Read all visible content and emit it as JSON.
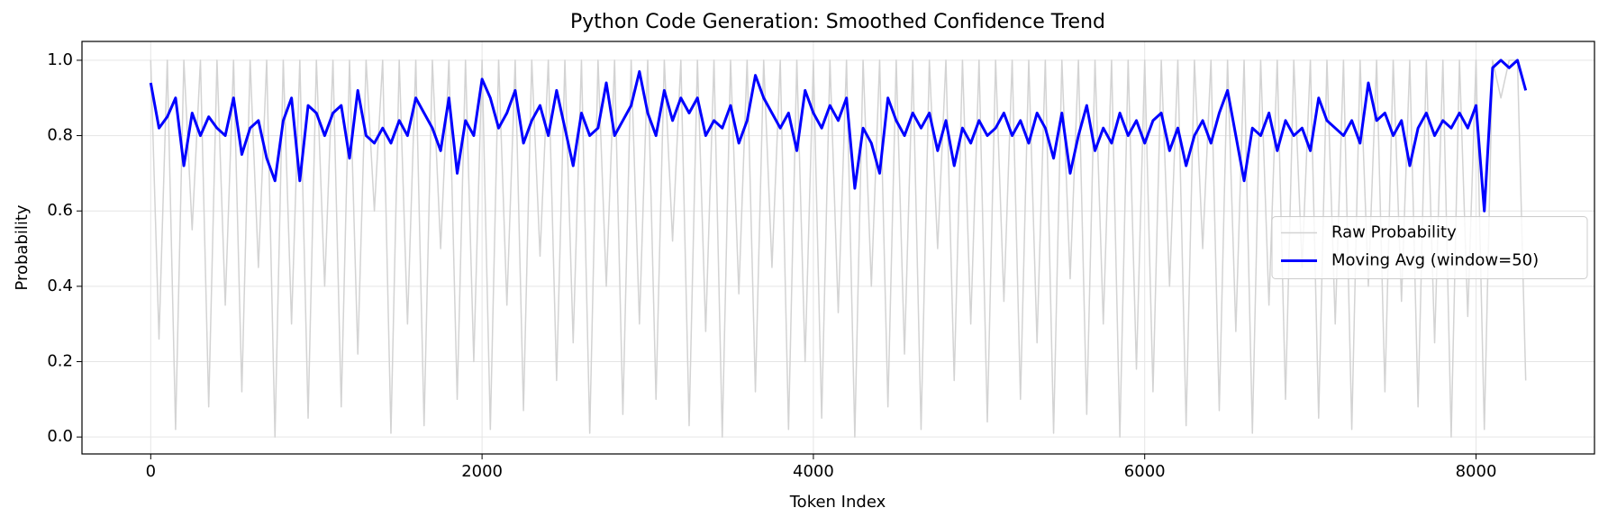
{
  "chart_data": {
    "type": "line",
    "title": "Python Code Generation: Smoothed Confidence Trend",
    "xlabel": "Token Index",
    "ylabel": "Probability",
    "x": [
      0,
      50,
      100,
      150,
      200,
      250,
      300,
      350,
      400,
      450,
      500,
      550,
      600,
      650,
      700,
      750,
      800,
      850,
      900,
      950,
      1000,
      1050,
      1100,
      1150,
      1200,
      1250,
      1300,
      1350,
      1400,
      1450,
      1500,
      1550,
      1600,
      1650,
      1700,
      1750,
      1800,
      1850,
      1900,
      1950,
      2000,
      2050,
      2100,
      2150,
      2200,
      2250,
      2300,
      2350,
      2400,
      2450,
      2500,
      2550,
      2600,
      2650,
      2700,
      2750,
      2800,
      2850,
      2900,
      2950,
      3000,
      3050,
      3100,
      3150,
      3200,
      3250,
      3300,
      3350,
      3400,
      3450,
      3500,
      3550,
      3600,
      3650,
      3700,
      3750,
      3800,
      3850,
      3900,
      3950,
      4000,
      4050,
      4100,
      4150,
      4200,
      4250,
      4300,
      4350,
      4400,
      4450,
      4500,
      4550,
      4600,
      4650,
      4700,
      4750,
      4800,
      4850,
      4900,
      4950,
      5000,
      5050,
      5100,
      5150,
      5200,
      5250,
      5300,
      5350,
      5400,
      5450,
      5500,
      5550,
      5600,
      5650,
      5700,
      5750,
      5800,
      5850,
      5900,
      5950,
      6000,
      6050,
      6100,
      6150,
      6200,
      6250,
      6300,
      6350,
      6400,
      6450,
      6500,
      6550,
      6600,
      6650,
      6700,
      6750,
      6800,
      6850,
      6900,
      6950,
      7000,
      7050,
      7100,
      7150,
      7200,
      7250,
      7300,
      7350,
      7400,
      7450,
      7500,
      7550,
      7600,
      7650,
      7700,
      7750,
      7800,
      7850,
      7900,
      7950,
      8000,
      8050,
      8100,
      8150,
      8200,
      8250,
      8300
    ],
    "series": [
      {
        "name": "Raw Probability",
        "color": "#d3d3d3",
        "width": 1.5,
        "values": [
          1,
          0.26,
          1,
          0.02,
          1,
          0.55,
          1,
          0.08,
          1,
          0.35,
          1,
          0.12,
          1,
          0.45,
          1,
          0.0,
          1,
          0.3,
          1,
          0.05,
          1,
          0.4,
          1,
          0.08,
          1,
          0.22,
          1,
          0.6,
          1,
          0.01,
          1,
          0.3,
          1,
          0.03,
          1,
          0.5,
          1,
          0.1,
          1,
          0.2,
          1,
          0.02,
          1,
          0.35,
          1,
          0.07,
          1,
          0.48,
          1,
          0.15,
          1,
          0.25,
          1,
          0.01,
          1,
          0.4,
          1,
          0.06,
          1,
          0.3,
          1,
          0.1,
          1,
          0.52,
          1,
          0.03,
          1,
          0.28,
          1,
          0.0,
          1,
          0.38,
          1,
          0.12,
          1,
          0.45,
          1,
          0.02,
          1,
          0.2,
          1,
          0.05,
          1,
          0.33,
          1,
          0.0,
          1,
          0.4,
          1,
          0.08,
          1,
          0.22,
          1,
          0.02,
          1,
          0.5,
          1,
          0.15,
          1,
          0.3,
          1,
          0.04,
          1,
          0.36,
          1,
          0.1,
          1,
          0.25,
          1,
          0.01,
          1,
          0.42,
          1,
          0.06,
          1,
          0.3,
          1,
          0.0,
          1,
          0.18,
          1,
          0.12,
          1,
          0.4,
          1,
          0.03,
          1,
          0.5,
          1,
          0.07,
          1,
          0.28,
          1,
          0.01,
          1,
          0.35,
          1,
          0.1,
          1,
          0.45,
          1,
          0.05,
          1,
          0.3,
          1,
          0.02,
          1,
          0.4,
          1,
          0.12,
          1,
          0.36,
          1,
          0.08,
          1,
          0.25,
          1,
          0.0,
          1,
          0.32,
          1,
          0.02,
          1,
          0.9,
          1,
          1,
          0.15
        ]
      },
      {
        "name": "Moving Avg (window=50)",
        "color": "#0000ff",
        "width": 3,
        "values": [
          0.94,
          0.82,
          0.85,
          0.9,
          0.72,
          0.86,
          0.8,
          0.85,
          0.82,
          0.8,
          0.9,
          0.75,
          0.82,
          0.84,
          0.74,
          0.68,
          0.84,
          0.9,
          0.68,
          0.88,
          0.86,
          0.8,
          0.86,
          0.88,
          0.74,
          0.92,
          0.8,
          0.78,
          0.82,
          0.78,
          0.84,
          0.8,
          0.9,
          0.86,
          0.82,
          0.76,
          0.9,
          0.7,
          0.84,
          0.8,
          0.95,
          0.9,
          0.82,
          0.86,
          0.92,
          0.78,
          0.84,
          0.88,
          0.8,
          0.92,
          0.82,
          0.72,
          0.86,
          0.8,
          0.82,
          0.94,
          0.8,
          0.84,
          0.88,
          0.97,
          0.86,
          0.8,
          0.92,
          0.84,
          0.9,
          0.86,
          0.9,
          0.8,
          0.84,
          0.82,
          0.88,
          0.78,
          0.84,
          0.96,
          0.9,
          0.86,
          0.82,
          0.86,
          0.76,
          0.92,
          0.86,
          0.82,
          0.88,
          0.84,
          0.9,
          0.66,
          0.82,
          0.78,
          0.7,
          0.9,
          0.84,
          0.8,
          0.86,
          0.82,
          0.86,
          0.76,
          0.84,
          0.72,
          0.82,
          0.78,
          0.84,
          0.8,
          0.82,
          0.86,
          0.8,
          0.84,
          0.78,
          0.86,
          0.82,
          0.74,
          0.86,
          0.7,
          0.8,
          0.88,
          0.76,
          0.82,
          0.78,
          0.86,
          0.8,
          0.84,
          0.78,
          0.84,
          0.86,
          0.76,
          0.82,
          0.72,
          0.8,
          0.84,
          0.78,
          0.86,
          0.92,
          0.8,
          0.68,
          0.82,
          0.8,
          0.86,
          0.76,
          0.84,
          0.8,
          0.82,
          0.76,
          0.9,
          0.84,
          0.82,
          0.8,
          0.84,
          0.78,
          0.94,
          0.84,
          0.86,
          0.8,
          0.84,
          0.72,
          0.82,
          0.86,
          0.8,
          0.84,
          0.82,
          0.86,
          0.82,
          0.88,
          0.6,
          0.98,
          1.0,
          0.98,
          1.0,
          0.92
        ]
      }
    ],
    "xlim": [
      -415,
      8715
    ],
    "ylim": [
      -0.045,
      1.05
    ],
    "xticks": [
      0,
      2000,
      4000,
      6000,
      8000
    ],
    "yticks": [
      {
        "value": 0,
        "label": "0.0"
      },
      {
        "value": 0.2,
        "label": "0.2"
      },
      {
        "value": 0.4,
        "label": "0.4"
      },
      {
        "value": 0.6,
        "label": "0.6"
      },
      {
        "value": 0.8,
        "label": "0.8"
      },
      {
        "value": 1,
        "label": "1.0"
      }
    ],
    "grid": true,
    "legend": "center right"
  }
}
